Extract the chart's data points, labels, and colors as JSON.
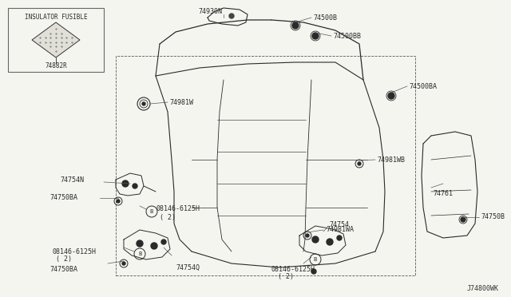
{
  "background_color": "#f5f5f0",
  "line_color": "#2a2a2a",
  "fig_width": 6.4,
  "fig_height": 3.72,
  "dpi": 100,
  "footer_text": "J74800WK",
  "inset_title": "INSULATOR FUSIBLE",
  "inset_part": "74882R"
}
